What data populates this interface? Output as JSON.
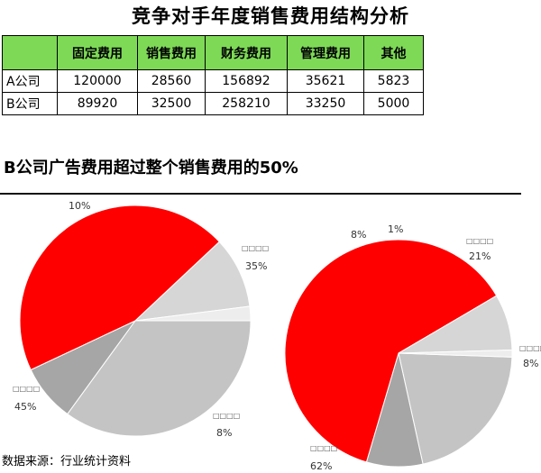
{
  "title": "竞争对手年度销售费用结构分析",
  "table": {
    "corner": "",
    "headers": [
      "固定费用",
      "销售费用",
      "财务费用",
      "管理费用",
      "其他"
    ],
    "rows": [
      {
        "label": "A公司",
        "cells": [
          "120000",
          "28560",
          "156892",
          "35621",
          "5823"
        ]
      },
      {
        "label": "B公司",
        "cells": [
          "89920",
          "32500",
          "258210",
          "33250",
          "5000"
        ]
      }
    ]
  },
  "subtitle": "B公司广告费用超过整个销售费用的50%",
  "source": "数据来源：行业统计资料",
  "colors": {
    "header_bg": "#7ed957",
    "red": "#ff0000",
    "light_gray": "#cfcfcf",
    "mid_gray": "#a6a6a6",
    "pale_gray": "#eeeeee"
  },
  "chart_data": [
    {
      "type": "pie",
      "title": "",
      "slices": [
        {
          "label": "□□□□",
          "value": 35,
          "value_label": "35%",
          "color": "#c4c4c4"
        },
        {
          "label": "□□□□",
          "value": 8,
          "value_label": "8%",
          "color": "#a6a6a6"
        },
        {
          "label": "□□□□",
          "value": 45,
          "value_label": "45%",
          "color": "#ff0000"
        },
        {
          "label": "",
          "value": 10,
          "value_label": "10%",
          "color": "#d6d6d6"
        },
        {
          "label": "",
          "value": 2,
          "value_label": "",
          "color": "#ededed"
        }
      ]
    },
    {
      "type": "pie",
      "title": "",
      "slices": [
        {
          "label": "□□□□",
          "value": 21,
          "value_label": "21%",
          "color": "#c4c4c4"
        },
        {
          "label": "□□□□",
          "value": 8,
          "value_label": "8%",
          "color": "#a6a6a6"
        },
        {
          "label": "□□□□",
          "value": 62,
          "value_label": "62%",
          "color": "#ff0000"
        },
        {
          "label": "",
          "value": 8,
          "value_label": "8%",
          "color": "#d6d6d6"
        },
        {
          "label": "",
          "value": 1,
          "value_label": "1%",
          "color": "#ededed"
        }
      ]
    }
  ]
}
